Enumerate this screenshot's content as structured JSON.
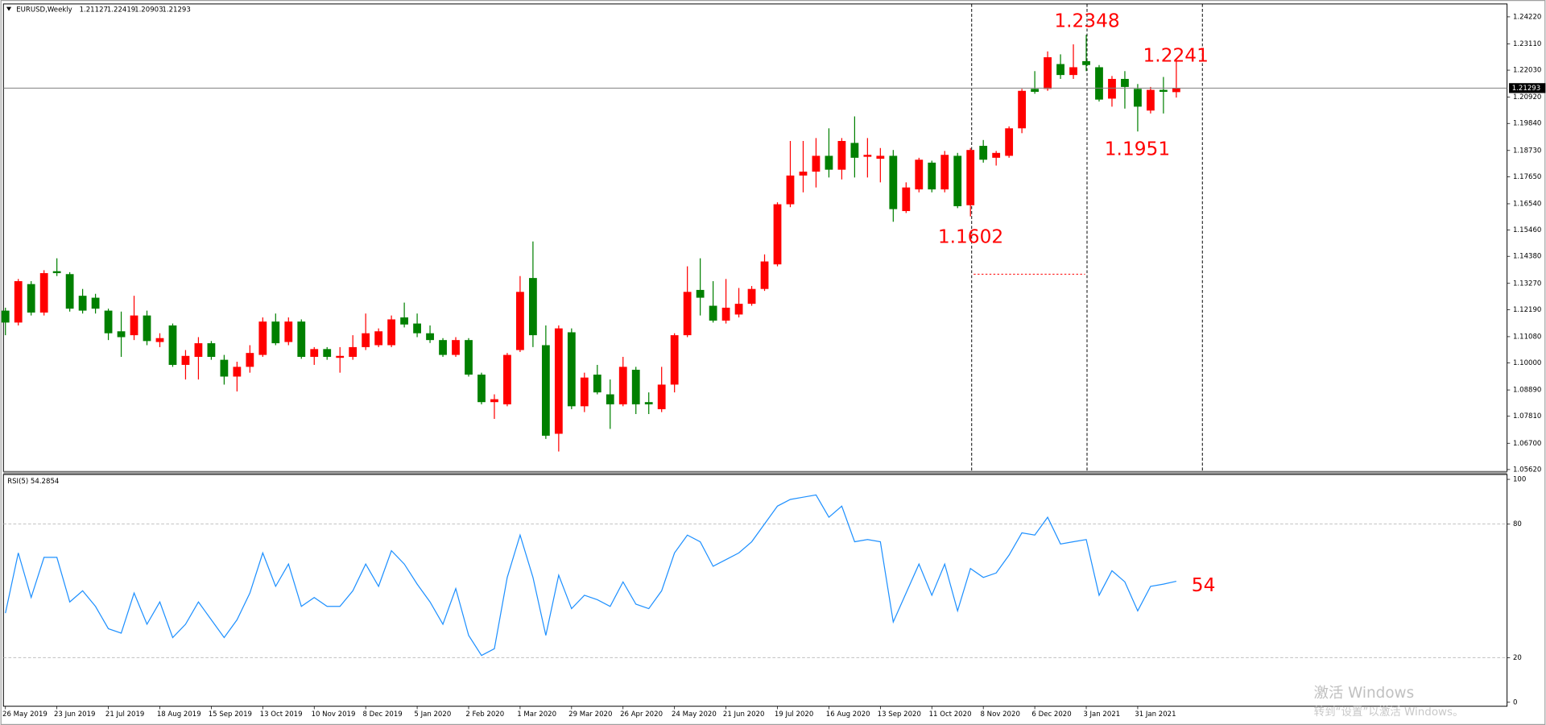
{
  "chart_data": [
    {
      "type": "candlestick",
      "title": "EURUSD,Weekly",
      "header_values": [
        1.21127,
        1.22419,
        1.20903,
        1.21293
      ],
      "categories": [
        "26 May 2019",
        null,
        null,
        null,
        "23 Jun 2019",
        null,
        null,
        null,
        "21 Jul 2019",
        null,
        null,
        null,
        "18 Aug 2019",
        null,
        null,
        null,
        "15 Sep 2019",
        null,
        null,
        null,
        "13 Oct 2019",
        null,
        null,
        null,
        "10 Nov 2019",
        null,
        null,
        null,
        "8 Dec 2019",
        null,
        null,
        null,
        "5 Jan 2020",
        null,
        null,
        null,
        "2 Feb 2020",
        null,
        null,
        null,
        "1 Mar 2020",
        null,
        null,
        null,
        "29 Mar 2020",
        null,
        null,
        null,
        "26 Apr 2020",
        null,
        null,
        null,
        "24 May 2020",
        null,
        null,
        null,
        "21 Jun 2020",
        null,
        null,
        null,
        "19 Jul 2020",
        null,
        null,
        null,
        "16 Aug 2020",
        null,
        null,
        null,
        "13 Sep 2020",
        null,
        null,
        null,
        "11 Oct 2020",
        null,
        null,
        null,
        "8 Nov 2020",
        null,
        null,
        null,
        "6 Dec 2020",
        null,
        null,
        null,
        "3 Jan 2021",
        null,
        null,
        null,
        "31 Jan 2021",
        null,
        null,
        null
      ],
      "open": [
        1.1215,
        1.1166,
        1.1324,
        1.1207,
        1.1377,
        1.1365,
        1.1276,
        1.1268,
        1.1215,
        1.113,
        1.1114,
        1.1195,
        1.1086,
        1.1154,
        1.0992,
        1.1025,
        1.1081,
        1.1013,
        1.0944,
        1.0984,
        1.1033,
        1.117,
        1.1086,
        1.117,
        1.1025,
        1.1057,
        1.1021,
        1.1025,
        1.1065,
        1.1073,
        1.1073,
        1.1187,
        1.1162,
        1.1122,
        1.1094,
        1.1033,
        1.1094,
        1.0952,
        1.0839,
        1.083,
        1.1053,
        1.1349,
        1.1073,
        1.0709,
        1.1126,
        1.0822,
        1.0952,
        1.0871,
        1.083,
        1.0972,
        1.0839,
        1.081,
        1.0911,
        1.1114,
        1.13,
        1.1235,
        1.1174,
        1.1199,
        1.1243,
        1.1304,
        1.1405,
        1.1652,
        1.177,
        1.1786,
        1.1851,
        1.1794,
        1.1904,
        1.1847,
        1.1839,
        1.1851,
        1.1624,
        1.1713,
        1.1823,
        1.1713,
        1.1851,
        1.1648,
        1.1892,
        1.1843,
        1.1851,
        1.1964,
        1.2126,
        1.2126,
        1.2228,
        1.2183,
        1.224,
        1.2215,
        1.2086,
        1.2167,
        1.2126,
        1.2037,
        1.2122,
        1.21127
      ],
      "high": [
        1.1227,
        1.1345,
        1.1336,
        1.1381,
        1.143,
        1.1373,
        1.1304,
        1.1284,
        1.1223,
        1.1211,
        1.1276,
        1.1215,
        1.1122,
        1.1162,
        1.1053,
        1.1106,
        1.109,
        1.1033,
        1.1005,
        1.1073,
        1.1187,
        1.1203,
        1.1187,
        1.1179,
        1.1065,
        1.1065,
        1.1065,
        1.1114,
        1.1203,
        1.1142,
        1.1195,
        1.1248,
        1.1203,
        1.1154,
        1.1102,
        1.1106,
        1.1102,
        1.096,
        1.0871,
        1.1041,
        1.1357,
        1.1499,
        1.1154,
        1.1154,
        1.1142,
        1.096,
        1.0992,
        1.0932,
        1.1025,
        1.0984,
        1.0879,
        1.0984,
        1.1122,
        1.1397,
        1.143,
        1.1336,
        1.1345,
        1.1308,
        1.1316,
        1.1446,
        1.166,
        1.1912,
        1.1912,
        1.1924,
        1.1964,
        1.1924,
        1.2013,
        1.1924,
        1.1883,
        1.1875,
        1.1742,
        1.1843,
        1.1831,
        1.1871,
        1.1863,
        1.1883,
        1.1916,
        1.1871,
        1.1972,
        1.2126,
        1.2199,
        1.228,
        1.2268,
        1.2309,
        1.2348,
        1.2224,
        1.2179,
        1.2199,
        1.2146,
        1.2134,
        1.2175,
        1.22419
      ],
      "low": [
        1.1114,
        1.1154,
        1.1195,
        1.1195,
        1.1357,
        1.1211,
        1.1203,
        1.1203,
        1.1094,
        1.1025,
        1.1094,
        1.1073,
        1.1065,
        1.0984,
        1.0932,
        1.0932,
        1.1013,
        1.0911,
        1.0883,
        1.096,
        1.1025,
        1.1073,
        1.1073,
        1.1017,
        1.0992,
        1.1013,
        1.096,
        1.1013,
        1.1053,
        1.1065,
        1.1065,
        1.1146,
        1.1106,
        1.1082,
        1.1025,
        1.1025,
        1.0944,
        1.083,
        1.077,
        1.0822,
        1.1045,
        1.1065,
        1.0688,
        1.0636,
        1.081,
        1.0798,
        1.0871,
        1.0729,
        1.0822,
        1.079,
        1.079,
        1.0798,
        1.0879,
        1.1106,
        1.1195,
        1.1166,
        1.1162,
        1.1187,
        1.1235,
        1.1296,
        1.1397,
        1.164,
        1.1701,
        1.1721,
        1.1762,
        1.1754,
        1.1762,
        1.1762,
        1.1742,
        1.158,
        1.1616,
        1.1701,
        1.1701,
        1.1701,
        1.1636,
        1.1602,
        1.1823,
        1.1811,
        1.1843,
        1.1944,
        1.2106,
        1.2118,
        1.2167,
        1.2167,
        1.2199,
        1.2074,
        1.2053,
        1.2045,
        1.1951,
        1.2025,
        1.2025,
        1.20903
      ],
      "close": [
        1.1166,
        1.1336,
        1.1207,
        1.1369,
        1.1369,
        1.1223,
        1.1215,
        1.1223,
        1.1122,
        1.1106,
        1.1195,
        1.109,
        1.1102,
        1.0992,
        1.1029,
        1.1081,
        1.1025,
        1.0944,
        1.0984,
        1.1041,
        1.117,
        1.1081,
        1.117,
        1.1025,
        1.1057,
        1.1025,
        1.1029,
        1.1065,
        1.1122,
        1.113,
        1.1179,
        1.1158,
        1.1122,
        1.1094,
        1.1033,
        1.1094,
        1.0952,
        1.0839,
        1.0851,
        1.1033,
        1.1292,
        1.1114,
        1.0701,
        1.1142,
        1.0822,
        1.094,
        1.0879,
        1.083,
        1.0984,
        1.083,
        1.083,
        1.0911,
        1.1114,
        1.1292,
        1.1268,
        1.1174,
        1.1227,
        1.1243,
        1.1304,
        1.1417,
        1.1652,
        1.177,
        1.1786,
        1.1851,
        1.1794,
        1.1912,
        1.1843,
        1.1855,
        1.1851,
        1.1632,
        1.1721,
        1.1835,
        1.1713,
        1.1855,
        1.1644,
        1.1875,
        1.1835,
        1.1863,
        1.1964,
        1.2118,
        1.2114,
        1.2256,
        1.2183,
        1.2215,
        1.2224,
        1.2082,
        1.2167,
        1.2134,
        1.2053,
        1.2122,
        1.2114,
        1.21293
      ],
      "up_color": "#ff0000",
      "down_color": "#008000",
      "ylim": [
        1.0554,
        1.2475
      ],
      "yticks": [
        {
          "value": 1.2422,
          "label": "1.24220"
        },
        {
          "value": 1.2311,
          "label": "1.23110"
        },
        {
          "value": 1.2203,
          "label": "1.22030"
        },
        {
          "value": 1.2092,
          "label": "1.20920"
        },
        {
          "value": 1.1984,
          "label": "1.19840"
        },
        {
          "value": 1.1873,
          "label": "1.18730"
        },
        {
          "value": 1.1765,
          "label": "1.17650"
        },
        {
          "value": 1.1654,
          "label": "1.16540"
        },
        {
          "value": 1.1546,
          "label": "1.15460"
        },
        {
          "value": 1.1438,
          "label": "1.14380"
        },
        {
          "value": 1.1327,
          "label": "1.13270"
        },
        {
          "value": 1.1219,
          "label": "1.12190"
        },
        {
          "value": 1.1108,
          "label": "1.11080"
        },
        {
          "value": 1.1,
          "label": "1.10000"
        },
        {
          "value": 1.0889,
          "label": "1.08890"
        },
        {
          "value": 1.0781,
          "label": "1.07810"
        },
        {
          "value": 1.067,
          "label": "1.06700"
        },
        {
          "value": 1.0562,
          "label": "1.05620"
        }
      ],
      "annotations": [
        "1.2348",
        "1.2241",
        "1.1951",
        "1.1602"
      ]
    },
    {
      "type": "line",
      "title": "RSI(5) 54.2854",
      "color": "#1e90ff",
      "values": [
        40,
        67,
        47,
        65,
        65,
        45,
        50,
        43,
        33,
        31,
        49,
        35,
        45,
        29,
        35,
        45,
        37,
        29,
        37,
        49,
        67,
        52,
        62,
        43,
        47,
        43,
        43,
        50,
        62,
        52,
        68,
        62,
        53,
        45,
        35,
        51,
        30,
        21,
        24,
        56,
        75,
        56,
        30,
        57,
        42,
        48,
        46,
        43,
        54,
        44,
        42,
        50,
        67,
        75,
        72,
        61,
        64,
        67,
        72,
        80,
        88,
        91,
        92,
        93,
        83,
        88,
        72,
        73,
        72,
        36,
        49,
        62,
        48,
        62,
        41,
        60,
        56,
        58,
        66,
        76,
        75,
        83,
        71,
        72,
        73,
        48,
        59,
        54,
        41,
        52,
        53,
        54.2854
      ],
      "ylim": [
        -1.8,
        102.2
      ],
      "yticks": [
        100,
        80,
        20,
        0
      ],
      "annotations": [
        "54"
      ]
    }
  ],
  "watermark": {
    "line1": "激活 Windows",
    "line2": "转到“设置”以激活 Windows。"
  }
}
